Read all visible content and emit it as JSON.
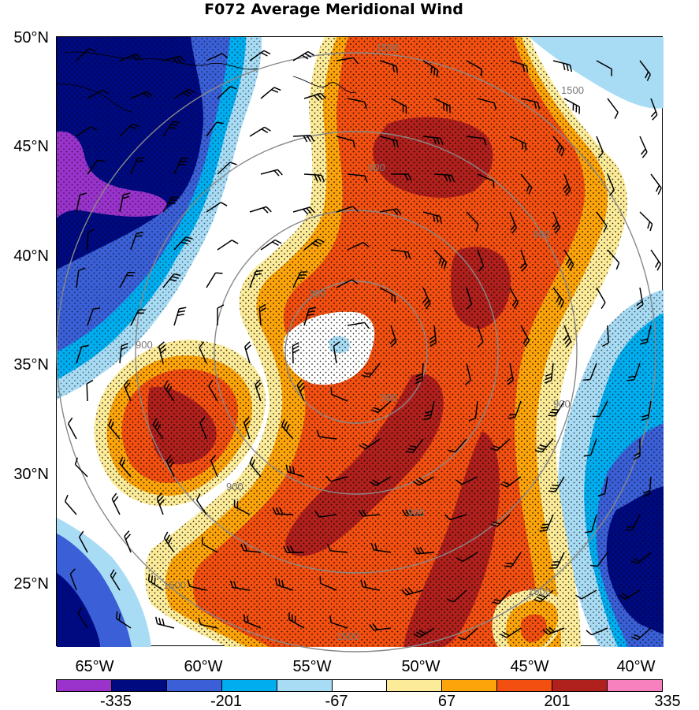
{
  "title": "F072 Average Meridional Wind",
  "latitude_labels": [
    "50°N",
    "45°N",
    "40°N",
    "35°N",
    "30°N",
    "25°N"
  ],
  "longitude_labels": [
    "65°W",
    "60°W",
    "55°W",
    "50°W",
    "45°W",
    "40°W"
  ],
  "colorbar": {
    "colors": [
      "#9933cc",
      "#000a80",
      "#3a5fd6",
      "#00aef0",
      "#a8dcf5",
      "#ffffff",
      "#fcec9a",
      "#fca40a",
      "#f24f10",
      "#b0201c",
      "#f781bf"
    ],
    "labels": [
      "-335",
      "-201",
      "-67",
      "67",
      "201",
      "335"
    ]
  },
  "contour_labels": [
    "1500",
    "1500",
    "900",
    "900",
    "900",
    "300",
    "300",
    "900",
    "900",
    "900",
    "1500",
    "1500",
    "1500"
  ]
}
